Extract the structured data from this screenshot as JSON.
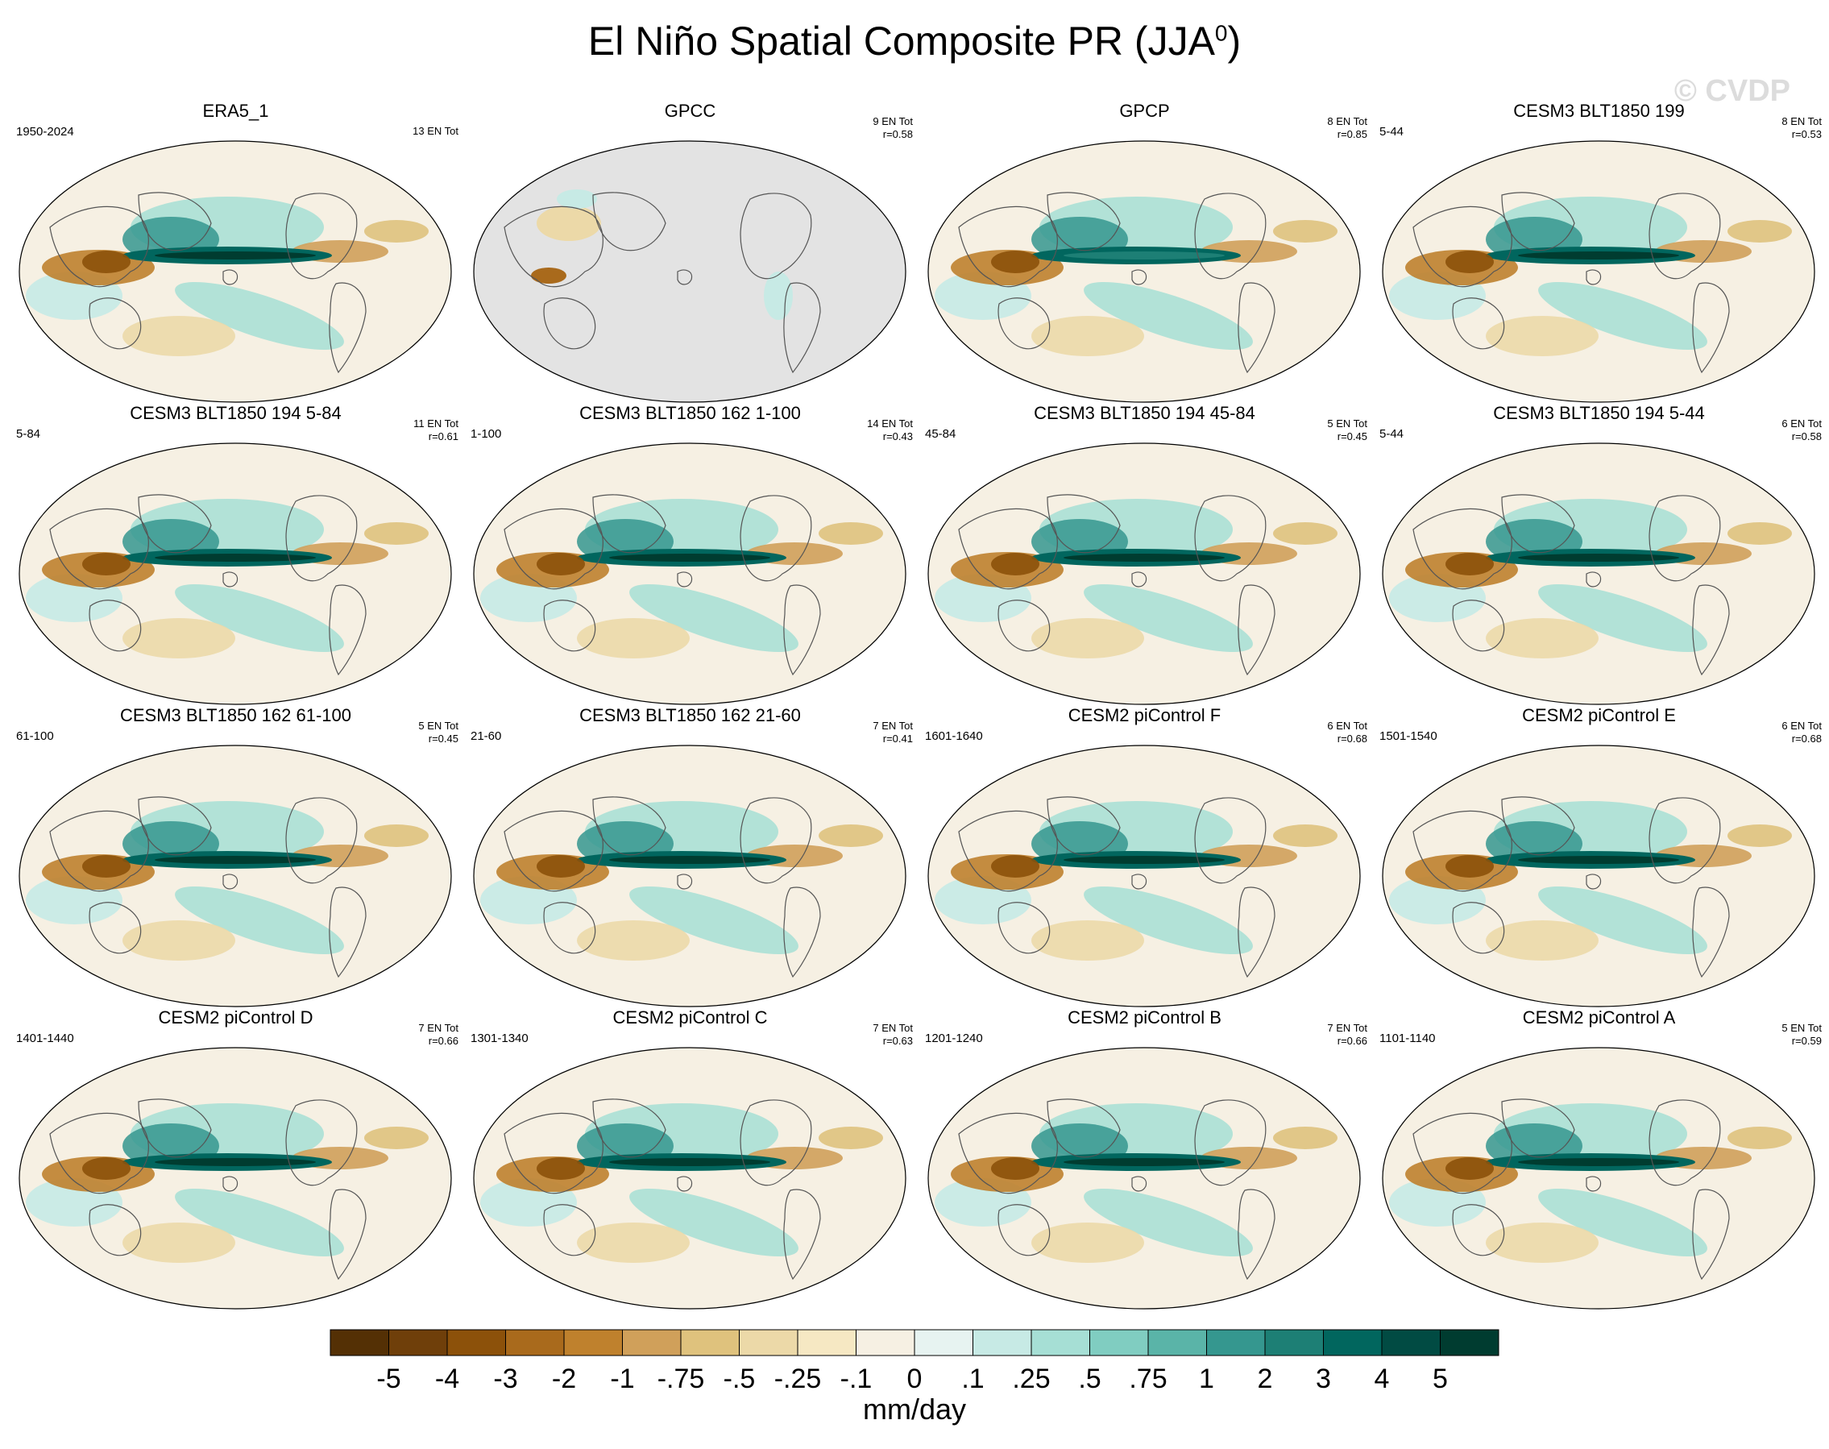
{
  "title": "El Niño Spatial Composite PR (JJA",
  "title_sup": "0",
  "title_close": ")",
  "watermark": "© CVDP",
  "panels": [
    {
      "title": "ERA5_1",
      "years": "1950-2024",
      "count": "13 EN Tot",
      "r": "",
      "style": "obs"
    },
    {
      "title": "GPCC",
      "years": "",
      "count": "9 EN Tot",
      "r": "r=0.58",
      "style": "land"
    },
    {
      "title": "GPCP",
      "years": "",
      "count": "8 EN Tot",
      "r": "r=0.85",
      "style": "gpcp"
    },
    {
      "title": "CESM3 BLT1850 199",
      "years": "5-44",
      "count": "8 EN Tot",
      "r": "r=0.53",
      "style": "model"
    },
    {
      "title": "CESM3 BLT1850 194 5-84",
      "years": "5-84",
      "count": "11 EN Tot",
      "r": "r=0.61",
      "style": "model"
    },
    {
      "title": "CESM3 BLT1850 162 1-100",
      "years": "1-100",
      "count": "14 EN Tot",
      "r": "r=0.43",
      "style": "model"
    },
    {
      "title": "CESM3 BLT1850 194 45-84",
      "years": "45-84",
      "count": "5 EN Tot",
      "r": "r=0.45",
      "style": "model"
    },
    {
      "title": "CESM3 BLT1850 194 5-44",
      "years": "5-44",
      "count": "6 EN Tot",
      "r": "r=0.58",
      "style": "model"
    },
    {
      "title": "CESM3 BLT1850 162 61-100",
      "years": "61-100",
      "count": "5 EN Tot",
      "r": "r=0.45",
      "style": "model"
    },
    {
      "title": "CESM3 BLT1850 162 21-60",
      "years": "21-60",
      "count": "7 EN Tot",
      "r": "r=0.41",
      "style": "model"
    },
    {
      "title": "CESM2 piControl F",
      "years": "1601-1640",
      "count": "6 EN Tot",
      "r": "r=0.68",
      "style": "model"
    },
    {
      "title": "CESM2 piControl E",
      "years": "1501-1540",
      "count": "6 EN Tot",
      "r": "r=0.68",
      "style": "model"
    },
    {
      "title": "CESM2 piControl D",
      "years": "1401-1440",
      "count": "7 EN Tot",
      "r": "r=0.66",
      "style": "model"
    },
    {
      "title": "CESM2 piControl C",
      "years": "1301-1340",
      "count": "7 EN Tot",
      "r": "r=0.63",
      "style": "model"
    },
    {
      "title": "CESM2 piControl B",
      "years": "1201-1240",
      "count": "7 EN Tot",
      "r": "r=0.66",
      "style": "model"
    },
    {
      "title": "CESM2 piControl A",
      "years": "1101-1140",
      "count": "5 EN Tot",
      "r": "r=0.59",
      "style": "model"
    }
  ],
  "colorbar": {
    "labels": [
      "-5",
      "-4",
      "-3",
      "-2",
      "-1",
      "-.75",
      "-.5",
      "-.25",
      "-.1",
      "0",
      ".1",
      ".25",
      ".5",
      ".75",
      "1",
      "2",
      "3",
      "4",
      "5"
    ],
    "colors": [
      "#543005",
      "#6f3f0a",
      "#8c510a",
      "#a96a1c",
      "#bf812d",
      "#d0a05a",
      "#dfc27d",
      "#ecd9a8",
      "#f6e8c3",
      "#f6f0e3",
      "#e7f3f1",
      "#c7eae5",
      "#a6dfd5",
      "#80cdc1",
      "#5ab4a8",
      "#35978f",
      "#1d7f75",
      "#01665e",
      "#014b43",
      "#003c30"
    ],
    "unit": "mm/day"
  },
  "chart_data": {
    "type": "heatmap",
    "title": "El Niño Spatial Composite PR (JJA0)",
    "variable": "PR",
    "season": "JJA0",
    "unit": "mm/day",
    "contour_levels": [
      -5,
      -4,
      -3,
      -2,
      -1,
      -0.75,
      -0.5,
      -0.25,
      -0.1,
      0,
      0.1,
      0.25,
      0.5,
      0.75,
      1,
      2,
      3,
      4,
      5
    ],
    "panels": [
      {
        "name": "ERA5_1",
        "period": "1950-2024",
        "events": 13,
        "r": null
      },
      {
        "name": "GPCC",
        "events": 9,
        "r": 0.58
      },
      {
        "name": "GPCP",
        "events": 8,
        "r": 0.85
      },
      {
        "name": "CESM3 BLT1850 199",
        "period": "5-44",
        "events": 8,
        "r": 0.53
      },
      {
        "name": "CESM3 BLT1850 194 5-84",
        "period": "5-84",
        "events": 11,
        "r": 0.61
      },
      {
        "name": "CESM3 BLT1850 162 1-100",
        "period": "1-100",
        "events": 14,
        "r": 0.43
      },
      {
        "name": "CESM3 BLT1850 194 45-84",
        "period": "45-84",
        "events": 5,
        "r": 0.45
      },
      {
        "name": "CESM3 BLT1850 194 5-44",
        "period": "5-44",
        "events": 6,
        "r": 0.58
      },
      {
        "name": "CESM3 BLT1850 162 61-100",
        "period": "61-100",
        "events": 5,
        "r": 0.45
      },
      {
        "name": "CESM3 BLT1850 162 21-60",
        "period": "21-60",
        "events": 7,
        "r": 0.41
      },
      {
        "name": "CESM2 piControl F",
        "period": "1601-1640",
        "events": 6,
        "r": 0.68
      },
      {
        "name": "CESM2 piControl E",
        "period": "1501-1540",
        "events": 6,
        "r": 0.68
      },
      {
        "name": "CESM2 piControl D",
        "period": "1401-1440",
        "events": 7,
        "r": 0.66
      },
      {
        "name": "CESM2 piControl C",
        "period": "1301-1340",
        "events": 7,
        "r": 0.63
      },
      {
        "name": "CESM2 piControl B",
        "period": "1201-1240",
        "events": 7,
        "r": 0.66
      },
      {
        "name": "CESM2 piControl A",
        "period": "1101-1140",
        "events": 5,
        "r": 0.59
      }
    ]
  }
}
